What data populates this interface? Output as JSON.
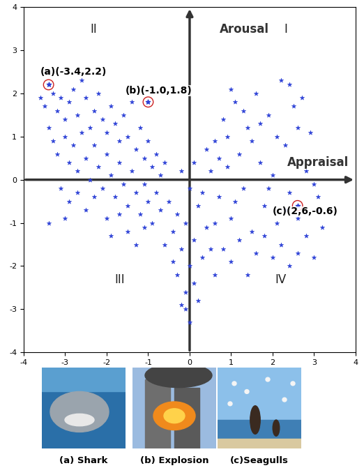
{
  "chart_data": {
    "type": "scatter",
    "x_label": "Appraisal",
    "y_label": "Arousal",
    "quadrants": [
      "I",
      "II",
      "III",
      "IV"
    ],
    "color": "#2b3fd6",
    "marker": "star",
    "xlim": [
      -4,
      4
    ],
    "ylim": [
      -4,
      4
    ],
    "xticks": [
      -4,
      -3,
      -2,
      -1,
      0,
      1,
      2,
      3,
      4
    ],
    "yticks": [
      -4,
      -3,
      -2,
      -1,
      0,
      1,
      2,
      3,
      4
    ],
    "x": [
      -3.6,
      -3.5,
      -3.3,
      -3.2,
      -3.1,
      -3.0,
      -2.9,
      -2.8,
      -2.7,
      -2.6,
      -2.5,
      -2.4,
      -2.3,
      -2.2,
      -2.1,
      -2.0,
      -1.9,
      -1.8,
      -1.7,
      -1.6,
      -1.5,
      -1.4,
      -1.3,
      -1.2,
      -1.1,
      -1.0,
      -0.9,
      -0.8,
      -0.7,
      -0.6,
      -3.4,
      -3.3,
      -3.2,
      -3.0,
      -2.9,
      -2.8,
      -2.7,
      -2.6,
      -2.5,
      -2.4,
      -2.3,
      -2.2,
      -2.1,
      -2.0,
      -1.9,
      -1.8,
      -1.7,
      -1.6,
      -1.5,
      -1.4,
      -1.3,
      -1.2,
      -1.1,
      -1.0,
      -0.9,
      -0.8,
      -0.7,
      -3.1,
      -2.9,
      -2.7,
      -3.4,
      -2.5,
      -2.3,
      -2.0,
      -1.9,
      -1.7,
      -1.5,
      -1.3,
      -1.1,
      -3.0,
      -0.5,
      -0.4,
      -0.3,
      -0.2,
      -0.1,
      0.0,
      0.1,
      0.2,
      0.3,
      0.4,
      -0.3,
      -0.1,
      0.0,
      -0.2,
      0.1,
      0.2,
      -0.4,
      0.5,
      0.6,
      -0.6,
      0.0,
      0.3,
      -0.2,
      0.1,
      0.4,
      -0.1,
      0.5,
      0.6,
      0.7,
      0.8,
      0.9,
      1.0,
      1.1,
      1.2,
      1.3,
      1.4,
      1.5,
      1.6,
      1.7,
      1.8,
      1.9,
      2.0,
      2.1,
      2.2,
      2.3,
      2.4,
      2.5,
      2.6,
      2.7,
      2.8,
      2.9,
      3.0,
      3.1,
      3.2,
      2.4,
      2.7,
      0.6,
      0.8,
      1.0,
      1.2,
      1.4,
      1.6,
      1.8,
      2.0,
      2.2,
      2.4,
      2.6,
      3.0,
      1.1,
      1.5,
      1.9,
      2.3,
      2.8,
      3.1,
      0.9,
      1.3,
      1.7,
      2.1,
      2.6,
      3.2,
      0.7,
      1.0
    ],
    "y": [
      1.9,
      1.7,
      2.0,
      1.6,
      1.9,
      1.4,
      1.8,
      2.1,
      1.5,
      2.3,
      1.9,
      1.2,
      1.6,
      2.0,
      1.4,
      1.1,
      1.7,
      1.3,
      0.9,
      1.5,
      1.0,
      1.8,
      0.7,
      1.2,
      0.5,
      0.9,
      0.3,
      0.6,
      0.1,
      0.4,
      1.2,
      0.9,
      0.6,
      1.0,
      0.4,
      0.8,
      0.2,
      1.1,
      0.5,
      0.0,
      0.8,
      0.3,
      -0.2,
      0.6,
      0.1,
      -0.4,
      0.4,
      -0.1,
      -0.6,
      0.2,
      -0.3,
      -0.8,
      -0.1,
      -0.5,
      -1.0,
      -0.3,
      -0.7,
      -0.2,
      -0.5,
      -0.3,
      -1.0,
      -0.7,
      -0.4,
      -0.9,
      -1.3,
      -0.8,
      -1.2,
      -1.5,
      -1.1,
      -0.9,
      -0.5,
      -1.2,
      -0.8,
      -1.6,
      -1.0,
      -2.0,
      -1.4,
      -0.6,
      -1.8,
      -1.1,
      -2.2,
      -2.6,
      -3.3,
      -2.9,
      -2.4,
      -2.8,
      -1.9,
      -1.6,
      -2.2,
      -1.5,
      -0.2,
      -0.3,
      0.2,
      0.4,
      0.7,
      -3.0,
      0.2,
      0.9,
      -0.4,
      1.4,
      0.3,
      -0.9,
      1.8,
      0.6,
      -0.2,
      1.2,
      -1.2,
      2.0,
      0.4,
      -0.6,
      1.5,
      0.1,
      -1.0,
      2.3,
      0.8,
      -0.3,
      1.7,
      -0.9,
      0.5,
      -1.3,
      1.1,
      -0.1,
      -0.7,
      0.3,
      2.2,
      1.9,
      -1.0,
      -1.6,
      -1.9,
      -1.4,
      -2.2,
      -1.7,
      -1.3,
      -1.8,
      -1.5,
      -2.0,
      -1.7,
      -1.8,
      -0.5,
      0.9,
      -0.2,
      -0.7,
      0.2,
      -0.4,
      1.0,
      1.6,
      1.3,
      1.0,
      1.2,
      -1.1,
      0.5,
      2.1
    ],
    "highlights": [
      {
        "label": "(a)(-3.4,2.2)",
        "x": -3.4,
        "y": 2.2,
        "color": "#cc2222"
      },
      {
        "label": "(b)(-1.0,1.8)",
        "x": -1.0,
        "y": 1.8,
        "color": "#cc2222"
      },
      {
        "label": "(c)(2,6,-0.6)",
        "x": 2.6,
        "y": -0.6,
        "color": "#cc2222"
      }
    ],
    "images": [
      {
        "caption": "(a) Shark"
      },
      {
        "caption": "(b) Explosion"
      },
      {
        "caption": "(c)Seagulls"
      }
    ]
  }
}
